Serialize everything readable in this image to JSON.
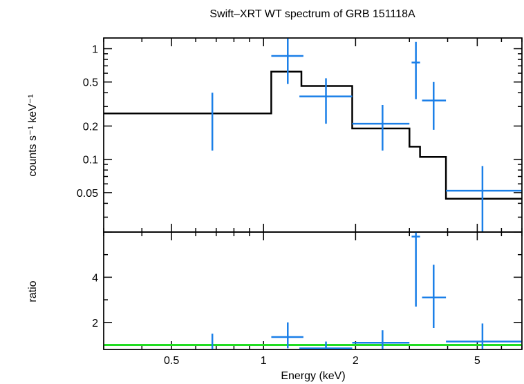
{
  "title": "Swift–XRT WT spectrum of GRB 151118A",
  "colors": {
    "data": "#1a7fe8",
    "model": "#000000",
    "unity": "#22dd22",
    "axis": "#000000"
  },
  "chart_data": [
    {
      "type": "scatter",
      "panel": "spectrum",
      "title": "Swift–XRT WT spectrum of GRB 151118A",
      "ylabel": "counts s⁻¹ keV⁻¹",
      "xscale": "log",
      "yscale": "log",
      "xlim": [
        0.3,
        7.0
      ],
      "ylim": [
        0.022,
        1.25
      ],
      "yticks": [
        {
          "value": 0.05,
          "label": "0.05"
        },
        {
          "value": 0.1,
          "label": "0.1"
        },
        {
          "value": 0.2,
          "label": "0.2"
        },
        {
          "value": 0.5,
          "label": "0.5"
        },
        {
          "value": 1,
          "label": "1"
        }
      ],
      "data_points": [
        {
          "x": 0.68,
          "x_low": 0.68,
          "x_high": 0.68,
          "y": 0.26,
          "y_low": 0.12,
          "y_high": 0.4
        },
        {
          "x": 1.2,
          "x_low": 1.06,
          "x_high": 1.35,
          "y": 0.86,
          "y_low": 0.48,
          "y_high": 1.25
        },
        {
          "x": 1.6,
          "x_low": 1.31,
          "x_high": 1.95,
          "y": 0.37,
          "y_low": 0.21,
          "y_high": 0.54
        },
        {
          "x": 2.45,
          "x_low": 1.95,
          "x_high": 3.0,
          "y": 0.21,
          "y_low": 0.12,
          "y_high": 0.31
        },
        {
          "x": 3.15,
          "x_low": 3.05,
          "x_high": 3.25,
          "y": 0.75,
          "y_low": 0.35,
          "y_high": 1.15
        },
        {
          "x": 3.6,
          "x_low": 3.3,
          "x_high": 3.95,
          "y": 0.34,
          "y_low": 0.185,
          "y_high": 0.5
        },
        {
          "x": 5.2,
          "x_low": 3.95,
          "x_high": 7.0,
          "y": 0.052,
          "y_low": 0.022,
          "y_high": 0.087
        }
      ],
      "model_steps": [
        {
          "x_start": 0.3,
          "x_end": 1.06,
          "y": 0.26
        },
        {
          "x_start": 1.06,
          "x_end": 1.33,
          "y": 0.62
        },
        {
          "x_start": 1.33,
          "x_end": 1.95,
          "y": 0.46
        },
        {
          "x_start": 1.95,
          "x_end": 3.0,
          "y": 0.19
        },
        {
          "x_start": 3.0,
          "x_end": 3.25,
          "y": 0.13
        },
        {
          "x_start": 3.25,
          "x_end": 3.95,
          "y": 0.105
        },
        {
          "x_start": 3.95,
          "x_end": 7.0,
          "y": 0.044
        }
      ]
    },
    {
      "type": "scatter",
      "panel": "ratio",
      "ylabel": "ratio",
      "xlabel": "Energy (keV)",
      "xscale": "log",
      "xlim": [
        0.3,
        7.0
      ],
      "ylim": [
        0.8,
        6.0
      ],
      "xticks": [
        {
          "value": 0.5,
          "label": "0.5"
        },
        {
          "value": 1,
          "label": "1"
        },
        {
          "value": 2,
          "label": "2"
        },
        {
          "value": 5,
          "label": "5"
        }
      ],
      "yticks": [
        {
          "value": 2,
          "label": "2"
        },
        {
          "value": 4,
          "label": "4"
        }
      ],
      "unity_line": 1.0,
      "data_points": [
        {
          "x": 0.68,
          "x_low": 0.68,
          "x_high": 0.68,
          "y": 1.0,
          "y_low": 0.8,
          "y_high": 1.5
        },
        {
          "x": 1.2,
          "x_low": 1.06,
          "x_high": 1.35,
          "y": 1.35,
          "y_low": 0.85,
          "y_high": 2.0
        },
        {
          "x": 1.6,
          "x_low": 1.31,
          "x_high": 1.95,
          "y": 0.85,
          "y_low": 0.8,
          "y_high": 1.15
        },
        {
          "x": 2.45,
          "x_low": 1.95,
          "x_high": 3.0,
          "y": 1.1,
          "y_low": 0.8,
          "y_high": 1.65
        },
        {
          "x": 3.15,
          "x_low": 3.05,
          "x_high": 3.25,
          "y": 5.8,
          "y_low": 2.7,
          "y_high": 6.0
        },
        {
          "x": 3.6,
          "x_low": 3.3,
          "x_high": 3.95,
          "y": 3.1,
          "y_low": 1.75,
          "y_high": 4.55
        },
        {
          "x": 5.2,
          "x_low": 3.95,
          "x_high": 7.0,
          "y": 1.15,
          "y_low": 0.8,
          "y_high": 1.95
        }
      ]
    }
  ]
}
